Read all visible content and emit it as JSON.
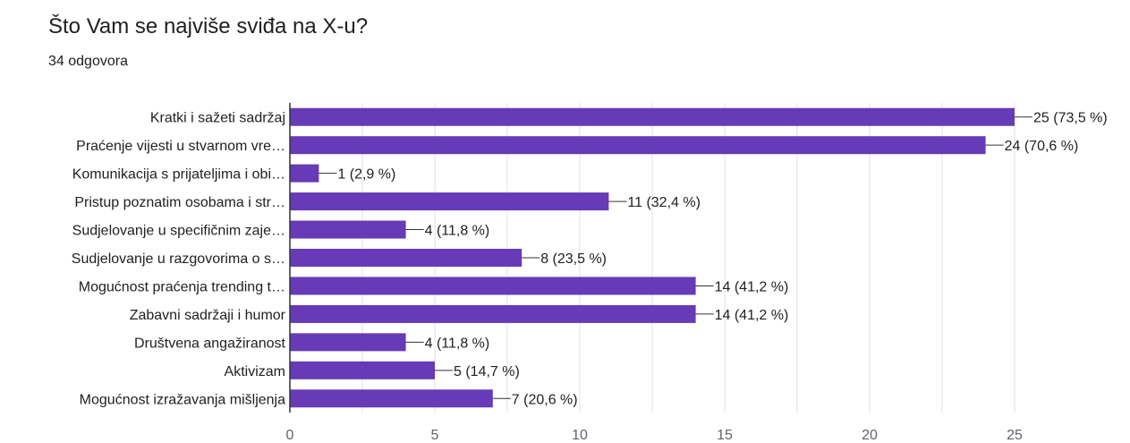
{
  "header": {
    "question": "Što Vam se najviše sviđa na X-u?",
    "response_count": "34 odgovora"
  },
  "colors": {
    "bar": "#673ab7",
    "grid": "#e0e0e0",
    "axis": "#333333"
  },
  "chart_data": {
    "type": "bar",
    "orientation": "horizontal",
    "categories": [
      "Kratki i sažeti sadržaj",
      "Praćenje vijesti u stvarnom vre…",
      "Komunikacija s prijateljima i obi…",
      "Pristup poznatim osobama i str…",
      "Sudjelovanje u specifičnim zaje…",
      "Sudjelovanje u razgovorima o s…",
      "Mogućnost praćenja trending t…",
      "Zabavni sadržaji i humor",
      "Društvena angažiranost",
      "Aktivizam",
      "Mogućnost izražavanja mišljenja"
    ],
    "values": [
      25,
      24,
      1,
      11,
      4,
      8,
      14,
      14,
      4,
      5,
      7
    ],
    "value_labels": [
      "25 (73,5 %)",
      "24 (70,6 %)",
      "1 (2,9 %)",
      "11 (32,4 %)",
      "4 (11,8 %)",
      "8 (23,5 %)",
      "14 (41,2 %)",
      "14 (41,2 %)",
      "4 (11,8 %)",
      "5 (14,7 %)",
      "7 (20,6 %)"
    ],
    "xlim": [
      0,
      25
    ],
    "xticks": [
      "0",
      "5",
      "10",
      "15",
      "20",
      "25"
    ],
    "grid": true
  }
}
